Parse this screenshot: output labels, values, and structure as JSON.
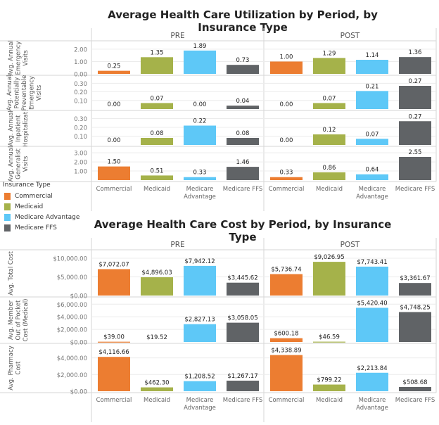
{
  "colors": {
    "Commercial": "#ec7d31",
    "Medicaid": "#a5b24a",
    "Medicare Advantage": "#5ec8f7",
    "Medicare FFS": "#606366",
    "grid": "#ececec",
    "divider": "#d6d6d6",
    "tick": "#777777"
  },
  "legend": {
    "title": "Insurance Type",
    "items": [
      "Commercial",
      "Medicaid",
      "Medicare Advantage",
      "Medicare FFS"
    ]
  },
  "chart_data": [
    {
      "type": "bar",
      "title": "Average Health Care Utilization by Period, by Insurance Type",
      "periods": [
        "PRE",
        "POST"
      ],
      "categories": [
        "Commercial",
        "Medicaid",
        "Medicare Advantage",
        "Medicare FFS"
      ],
      "category_labels": [
        [
          "Commercial"
        ],
        [
          "Medicaid"
        ],
        [
          "Medicare",
          "Advantage"
        ],
        [
          "Medicare FFS"
        ]
      ],
      "grid": true,
      "legend_position": "left",
      "rows": [
        {
          "label": [
            "Avg. Annual",
            "Emergency",
            "Visits"
          ],
          "ticks": [
            0,
            1,
            2
          ],
          "tick_labels": [
            "0.00",
            "1.00",
            "2.00"
          ],
          "ylim": [
            0,
            2.45
          ],
          "values": {
            "PRE": [
              0.25,
              1.35,
              1.89,
              0.73
            ],
            "POST": [
              1.0,
              1.29,
              1.14,
              1.36
            ]
          },
          "labels": {
            "PRE": [
              "0.25",
              "1.35",
              "1.89",
              "0.73"
            ],
            "POST": [
              "1.00",
              "1.29",
              "1.14",
              "1.36"
            ]
          }
        },
        {
          "label": [
            "Avg. Annual",
            "Potentially",
            "Preventable",
            "Emergency",
            "Visits"
          ],
          "ticks": [
            0.1,
            0.2,
            0.3
          ],
          "tick_labels": [
            "0.10",
            "0.20",
            "0.30"
          ],
          "ylim": [
            0,
            0.36
          ],
          "values": {
            "PRE": [
              0.0,
              0.07,
              0.0,
              0.04
            ],
            "POST": [
              0.0,
              0.07,
              0.21,
              0.27
            ]
          },
          "labels": {
            "PRE": [
              "0.00",
              "0.07",
              "0.00",
              "0.04"
            ],
            "POST": [
              "0.00",
              "0.07",
              "0.21",
              "0.27"
            ]
          }
        },
        {
          "label": [
            "Avg. Annual",
            "Inpatient",
            "Hospitalizat."
          ],
          "ticks": [
            0.1,
            0.2,
            0.3
          ],
          "tick_labels": [
            "0.10",
            "0.20",
            "0.30"
          ],
          "ylim": [
            0,
            0.36
          ],
          "values": {
            "PRE": [
              0.0,
              0.08,
              0.22,
              0.08
            ],
            "POST": [
              0.0,
              0.12,
              0.07,
              0.27
            ]
          },
          "labels": {
            "PRE": [
              "0.00",
              "0.08",
              "0.22",
              "0.08"
            ],
            "POST": [
              "0.00",
              "0.12",
              "0.07",
              "0.27"
            ]
          }
        },
        {
          "label": [
            "Avg. Annual",
            "Generalist",
            "Visits"
          ],
          "ticks": [
            1,
            2,
            3
          ],
          "tick_labels": [
            "1.00",
            "2.00",
            "3.00"
          ],
          "ylim": [
            0,
            3.4
          ],
          "values": {
            "PRE": [
              1.5,
              0.51,
              0.33,
              1.46
            ],
            "POST": [
              0.33,
              0.86,
              0.64,
              2.55
            ]
          },
          "labels": {
            "PRE": [
              "1.50",
              "0.51",
              "0.33",
              "1.46"
            ],
            "POST": [
              "0.33",
              "0.86",
              "0.64",
              "2.55"
            ]
          }
        }
      ]
    },
    {
      "type": "bar",
      "title": "Average Health Care Cost by Period, by Insurance Type",
      "periods": [
        "PRE",
        "POST"
      ],
      "categories": [
        "Commercial",
        "Medicaid",
        "Medicare Advantage",
        "Medicare FFS"
      ],
      "category_labels": [
        [
          "Commercial"
        ],
        [
          "Medicaid"
        ],
        [
          "Medicare",
          "Advantage"
        ],
        [
          "Medicare FFS"
        ]
      ],
      "grid": true,
      "rows": [
        {
          "label": [
            "Avg. Total Cost"
          ],
          "ticks": [
            0,
            5000,
            10000
          ],
          "tick_labels": [
            "$0.00",
            "$5,000.00",
            "$10,000.00"
          ],
          "ylim": [
            0,
            11500
          ],
          "values": {
            "PRE": [
              7072.07,
              4896.03,
              7942.12,
              3445.62
            ],
            "POST": [
              5736.74,
              9026.95,
              7743.41,
              3361.67
            ]
          },
          "labels": {
            "PRE": [
              "$7,072.07",
              "$4,896.03",
              "$7,942.12",
              "$3,445.62"
            ],
            "POST": [
              "$5,736.74",
              "$9,026.95",
              "$7,743.41",
              "$3,361.67"
            ]
          }
        },
        {
          "label": [
            "Avg. Member",
            "Out of Pocket",
            "Cost (Medical)"
          ],
          "ticks": [
            0,
            2000,
            4000,
            6000
          ],
          "tick_labels": [
            "$0.00",
            "$2,000.00",
            "$4,000.00",
            "$6,000.00"
          ],
          "ylim": [
            0,
            6700
          ],
          "values": {
            "PRE": [
              39.0,
              19.52,
              2827.13,
              3058.05
            ],
            "POST": [
              600.18,
              46.59,
              5420.4,
              4748.25
            ]
          },
          "labels": {
            "PRE": [
              "$39.00",
              "$19.52",
              "$2,827.13",
              "$3,058.05"
            ],
            "POST": [
              "$600.18",
              "$46.59",
              "$5,420.40",
              "$4,748.25"
            ]
          }
        },
        {
          "label": [
            "Avg. Pharmacy",
            "Cost"
          ],
          "ticks": [
            0,
            2000,
            4000
          ],
          "tick_labels": [
            "$0.00",
            "$2,000.00",
            "$4,000.00"
          ],
          "ylim": [
            0,
            5400
          ],
          "values": {
            "PRE": [
              4116.66,
              462.3,
              1208.52,
              1267.17
            ],
            "POST": [
              4338.89,
              799.22,
              2213.84,
              508.68
            ]
          },
          "labels": {
            "PRE": [
              "$4,116.66",
              "$462.30",
              "$1,208.52",
              "$1,267.17"
            ],
            "POST": [
              "$4,338.89",
              "$799.22",
              "$2,213.84",
              "$508.68"
            ]
          }
        }
      ]
    }
  ]
}
